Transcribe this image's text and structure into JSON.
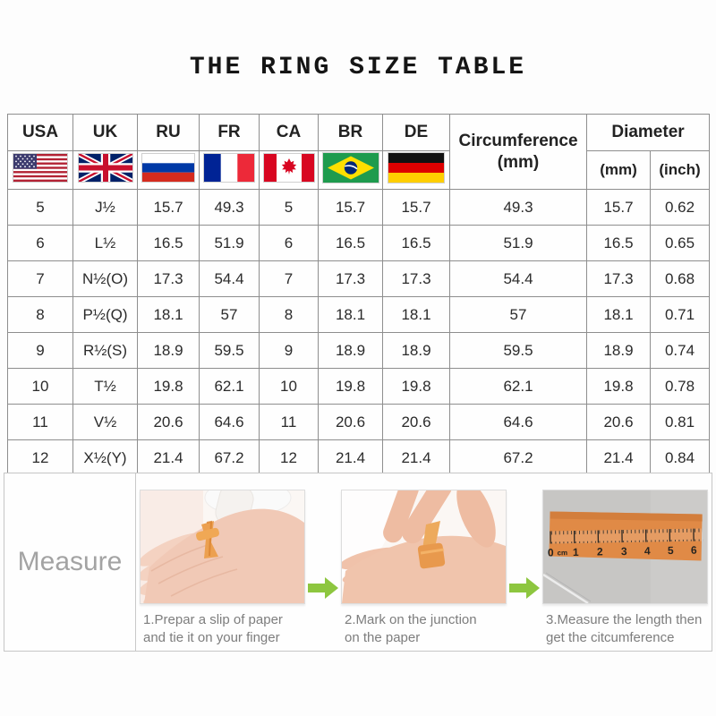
{
  "title": "THE RING SIZE TABLE",
  "table": {
    "country_codes": [
      "USA",
      "UK",
      "RU",
      "FR",
      "CA",
      "BR",
      "DE"
    ],
    "flags": [
      "usa-flag",
      "uk-flag",
      "russia-flag",
      "france-flag",
      "canada-flag",
      "brazil-flag",
      "germany-flag"
    ],
    "circumference_header": {
      "line1": "Circumference",
      "line2": "(mm)"
    },
    "diameter_header": "Diameter",
    "diameter_units": [
      "(mm)",
      "(inch)"
    ],
    "rows": [
      [
        "5",
        "J½",
        "15.7",
        "49.3",
        "5",
        "15.7",
        "15.7",
        "49.3",
        "15.7",
        "0.62"
      ],
      [
        "6",
        "L½",
        "16.5",
        "51.9",
        "6",
        "16.5",
        "16.5",
        "51.9",
        "16.5",
        "0.65"
      ],
      [
        "7",
        "N½(O)",
        "17.3",
        "54.4",
        "7",
        "17.3",
        "17.3",
        "54.4",
        "17.3",
        "0.68"
      ],
      [
        "8",
        "P½(Q)",
        "18.1",
        "57",
        "8",
        "18.1",
        "18.1",
        "57",
        "18.1",
        "0.71"
      ],
      [
        "9",
        "R½(S)",
        "18.9",
        "59.5",
        "9",
        "18.9",
        "18.9",
        "59.5",
        "18.9",
        "0.74"
      ],
      [
        "10",
        "T½",
        "19.8",
        "62.1",
        "10",
        "19.8",
        "19.8",
        "62.1",
        "19.8",
        "0.78"
      ],
      [
        "11",
        "V½",
        "20.6",
        "64.6",
        "11",
        "20.6",
        "20.6",
        "64.6",
        "20.6",
        "0.81"
      ],
      [
        "12",
        "X½(Y)",
        "21.4",
        "67.2",
        "12",
        "21.4",
        "21.4",
        "67.2",
        "21.4",
        "0.84"
      ]
    ]
  },
  "measure": {
    "label": "Measure",
    "steps": [
      {
        "caption_line1": "1.Prepar a slip of paper",
        "caption_line2": "and tie it on your finger"
      },
      {
        "caption_line1": "2.Mark on the junction",
        "caption_line2": "on the paper"
      },
      {
        "caption_line1": "3.Measure the length then",
        "caption_line2": "get the citcumference"
      }
    ],
    "ruler_labels": [
      "0",
      "cm",
      "1",
      "2",
      "3",
      "4",
      "5",
      "6"
    ]
  },
  "chart_data": {
    "type": "table",
    "title": "THE RING SIZE TABLE",
    "columns": [
      "USA",
      "UK",
      "RU",
      "FR",
      "CA",
      "BR",
      "DE",
      "Circumference (mm)",
      "Diameter (mm)",
      "Diameter (inch)"
    ],
    "rows": [
      [
        "5",
        "J½",
        "15.7",
        "49.3",
        "5",
        "15.7",
        "15.7",
        "49.3",
        "15.7",
        "0.62"
      ],
      [
        "6",
        "L½",
        "16.5",
        "51.9",
        "6",
        "16.5",
        "16.5",
        "51.9",
        "16.5",
        "0.65"
      ],
      [
        "7",
        "N½(O)",
        "17.3",
        "54.4",
        "7",
        "17.3",
        "17.3",
        "54.4",
        "17.3",
        "0.68"
      ],
      [
        "8",
        "P½(Q)",
        "18.1",
        "57",
        "8",
        "18.1",
        "18.1",
        "57",
        "18.1",
        "0.71"
      ],
      [
        "9",
        "R½(S)",
        "18.9",
        "59.5",
        "9",
        "18.9",
        "18.9",
        "59.5",
        "18.9",
        "0.74"
      ],
      [
        "10",
        "T½",
        "19.8",
        "62.1",
        "10",
        "19.8",
        "19.8",
        "62.1",
        "19.8",
        "0.78"
      ],
      [
        "11",
        "V½",
        "20.6",
        "64.6",
        "11",
        "20.6",
        "20.6",
        "64.6",
        "20.6",
        "0.81"
      ],
      [
        "12",
        "X½(Y)",
        "21.4",
        "67.2",
        "12",
        "21.4",
        "21.4",
        "67.2",
        "21.4",
        "0.84"
      ]
    ]
  },
  "colors": {
    "arrow_green": "#8dc63f",
    "paper_strip_orange": "#e5944e",
    "table_border_gray": "#8e8e8e",
    "section_border_gray": "#c6c6c6",
    "measure_label_gray": "#a3a3a3"
  }
}
